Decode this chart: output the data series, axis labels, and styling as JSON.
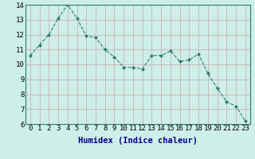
{
  "x": [
    0,
    1,
    2,
    3,
    4,
    5,
    6,
    7,
    8,
    9,
    10,
    11,
    12,
    13,
    14,
    15,
    16,
    17,
    18,
    19,
    20,
    21,
    22,
    23
  ],
  "y": [
    10.6,
    11.3,
    12.0,
    13.1,
    14.0,
    13.1,
    11.9,
    11.8,
    11.0,
    10.5,
    9.8,
    9.8,
    9.7,
    10.6,
    10.6,
    10.9,
    10.2,
    10.3,
    10.7,
    9.4,
    8.4,
    7.5,
    7.2,
    6.2
  ],
  "line_color": "#2e7d6e",
  "marker": "D",
  "marker_size": 2,
  "bg_color": "#ceeee8",
  "grid_color_major": "#c8a8a8",
  "grid_color_minor": "#c8a8a8",
  "xlabel": "Humidex (Indice chaleur)",
  "xlim": [
    -0.5,
    23.5
  ],
  "ylim": [
    6,
    14
  ],
  "yticks": [
    6,
    7,
    8,
    9,
    10,
    11,
    12,
    13,
    14
  ],
  "xticks": [
    0,
    1,
    2,
    3,
    4,
    5,
    6,
    7,
    8,
    9,
    10,
    11,
    12,
    13,
    14,
    15,
    16,
    17,
    18,
    19,
    20,
    21,
    22,
    23
  ],
  "tick_label_fontsize": 6.5,
  "xlabel_fontsize": 7.5,
  "xlabel_color": "#00008b",
  "line_width": 0.8
}
